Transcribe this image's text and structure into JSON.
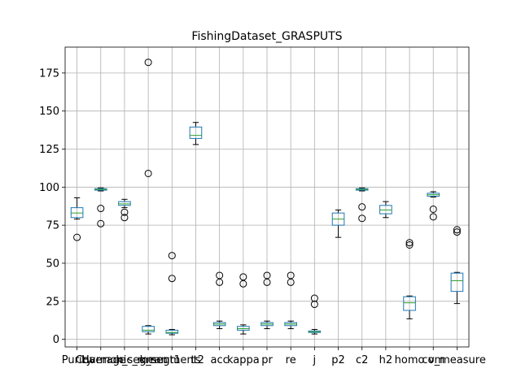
{
  "chart_data": {
    "type": "boxplot",
    "title": "FishingDataset_GRASPUTS",
    "xlabel": "",
    "ylabel": "",
    "ylim": [
      -5,
      192
    ],
    "yticks": [
      0,
      25,
      50,
      75,
      100,
      125,
      150,
      175
    ],
    "grid": true,
    "categories": [
      "Purity",
      "Coverage",
      "Harmonic_mean",
      "k_segment1",
      "k_segment2",
      "ts",
      "acc",
      "kappa",
      "pr",
      "re",
      "j",
      "p2",
      "c2",
      "h2",
      "homo",
      "com",
      "v_measure"
    ],
    "boxes": [
      {
        "name": "Purity",
        "whislo": 79,
        "q1": 80,
        "med": 83,
        "q3": 86.5,
        "whishi": 93,
        "fliers": [
          67
        ]
      },
      {
        "name": "Coverage",
        "whislo": 97.5,
        "q1": 98,
        "med": 98.5,
        "q3": 99,
        "whishi": 99.5,
        "fliers": [
          86,
          76
        ]
      },
      {
        "name": "Harmonic_mean",
        "whislo": 86.5,
        "q1": 88,
        "med": 89,
        "q3": 90.5,
        "whishi": 92,
        "fliers": [
          83.5,
          80
        ]
      },
      {
        "name": "k_segment1",
        "whislo": 3.5,
        "q1": 5,
        "med": 6,
        "q3": 8.5,
        "whishi": 9,
        "fliers": [
          182,
          109
        ]
      },
      {
        "name": "k_segment2",
        "whislo": 3,
        "q1": 4,
        "med": 4.5,
        "q3": 6,
        "whishi": 6.5,
        "fliers": [
          55,
          40
        ]
      },
      {
        "name": "ts",
        "whislo": 128,
        "q1": 132,
        "med": 134,
        "q3": 139.5,
        "whishi": 142.5,
        "fliers": []
      },
      {
        "name": "acc",
        "whislo": 7,
        "q1": 9,
        "med": 10,
        "q3": 11,
        "whishi": 12,
        "fliers": [
          42,
          37.5
        ]
      },
      {
        "name": "kappa",
        "whislo": 3.5,
        "q1": 6,
        "med": 7,
        "q3": 8.5,
        "whishi": 9.5,
        "fliers": [
          41,
          36.5
        ]
      },
      {
        "name": "pr",
        "whislo": 7,
        "q1": 9,
        "med": 10,
        "q3": 11,
        "whishi": 12,
        "fliers": [
          42,
          37.5
        ]
      },
      {
        "name": "re",
        "whislo": 7,
        "q1": 9,
        "med": 10,
        "q3": 11,
        "whishi": 12,
        "fliers": [
          42,
          37.5
        ]
      },
      {
        "name": "j",
        "whislo": 3.5,
        "q1": 4.5,
        "med": 5,
        "q3": 5.5,
        "whishi": 6.5,
        "fliers": [
          27,
          23
        ]
      },
      {
        "name": "p2",
        "whislo": 67,
        "q1": 75,
        "med": 79,
        "q3": 83,
        "whishi": 85,
        "fliers": []
      },
      {
        "name": "c2",
        "whislo": 97.5,
        "q1": 98,
        "med": 98.5,
        "q3": 99,
        "whishi": 99.5,
        "fliers": [
          87,
          79.5
        ]
      },
      {
        "name": "h2",
        "whislo": 80,
        "q1": 82.5,
        "med": 85,
        "q3": 88,
        "whishi": 90.5,
        "fliers": []
      },
      {
        "name": "homo",
        "whislo": 13.5,
        "q1": 19,
        "med": 24,
        "q3": 28,
        "whishi": 28.5,
        "fliers": [
          63.5,
          62
        ]
      },
      {
        "name": "com",
        "whislo": 93.5,
        "q1": 94,
        "med": 95,
        "q3": 96,
        "whishi": 97,
        "fliers": [
          85.5,
          80.5
        ]
      },
      {
        "name": "v_measure",
        "whislo": 23.5,
        "q1": 31.5,
        "med": 38.5,
        "q3": 43.5,
        "whishi": 44,
        "fliers": [
          72,
          70.5
        ]
      }
    ]
  }
}
